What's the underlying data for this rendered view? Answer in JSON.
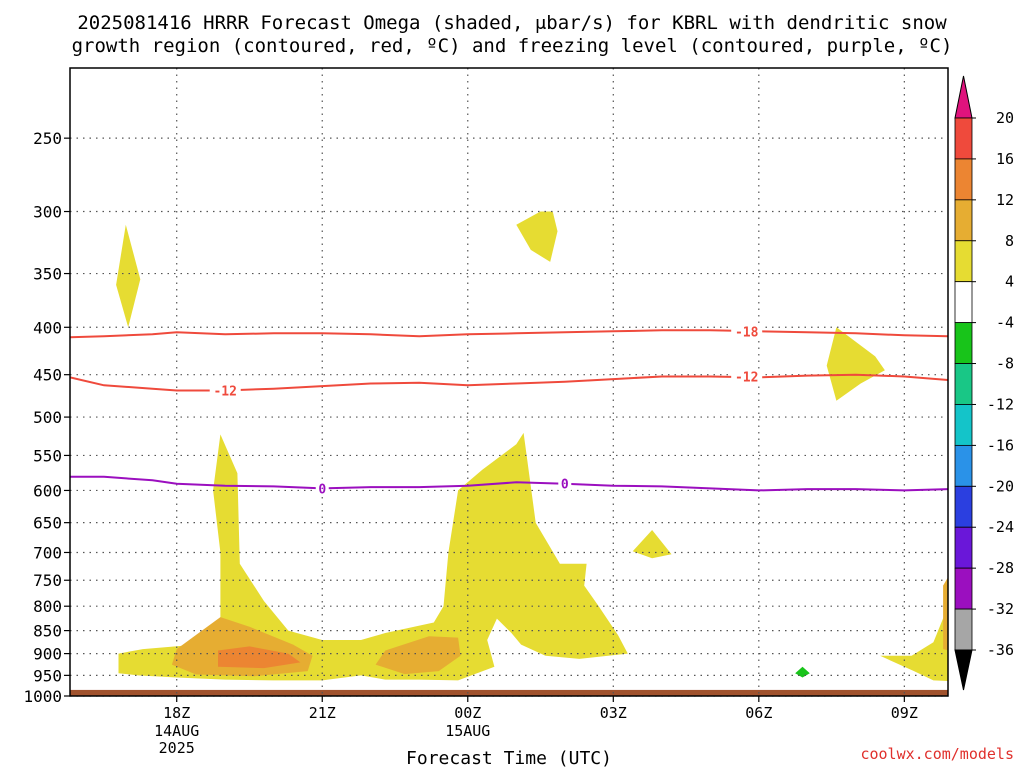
{
  "title": {
    "line1": "2025081416 HRRR Forecast Omega (shaded, μbar/s) for KBRL with dendritic snow",
    "line2": "growth region (contoured, red, ºC) and freezing level (contoured, purple, ºC)"
  },
  "credit": "coolwx.com/models",
  "chart_data": {
    "type": "heatmap",
    "xlabel": "Forecast Time (UTC)",
    "x_ticks": [
      {
        "label": "18Z",
        "sub": [
          "14AUG",
          "2025"
        ],
        "hour": 2
      },
      {
        "label": "21Z",
        "sub": [],
        "hour": 5
      },
      {
        "label": "00Z",
        "sub": [
          "15AUG"
        ],
        "hour": 8
      },
      {
        "label": "03Z",
        "sub": [],
        "hour": 11
      },
      {
        "label": "06Z",
        "sub": [],
        "hour": 14
      },
      {
        "label": "09Z",
        "sub": [],
        "hour": 17
      }
    ],
    "xlim_hours": [
      -0.2,
      17.9
    ],
    "y_ticks": [
      250,
      300,
      350,
      400,
      450,
      500,
      550,
      600,
      650,
      700,
      750,
      800,
      850,
      900,
      950,
      1000
    ],
    "ylim_hpa": [
      210,
      1000
    ],
    "y_scale": "log-pressure",
    "grid": true,
    "ground": {
      "color": "#a0522d",
      "from_hpa": 985
    },
    "colorbar": {
      "levels": [
        -36,
        -32,
        -28,
        -24,
        -20,
        -16,
        -12,
        -8,
        -4,
        4,
        8,
        12,
        16,
        20
      ],
      "colors": [
        "#000000",
        "#a6a6a6",
        "#9b0fbf",
        "#6a17d9",
        "#2b3fe0",
        "#2a92e8",
        "#14c4c9",
        "#19c786",
        "#18c41a",
        "#ffffff",
        "#e6dc32",
        "#e6ad32",
        "#ec8532",
        "#ef4a3c",
        "#e0137d"
      ]
    },
    "omega_regions": [
      {
        "level": 4,
        "color": "#e6dc32",
        "points": [
          [
            0.95,
            310
          ],
          [
            1.25,
            355
          ],
          [
            1.0,
            400
          ],
          [
            0.75,
            360
          ]
        ]
      },
      {
        "level": 4,
        "color": "#e6dc32",
        "points": [
          [
            9.0,
            310
          ],
          [
            9.5,
            300
          ],
          [
            9.75,
            300
          ],
          [
            9.85,
            315
          ],
          [
            9.7,
            340
          ],
          [
            9.3,
            330
          ]
        ]
      },
      {
        "level": 4,
        "color": "#e6dc32",
        "points": [
          [
            15.6,
            400
          ],
          [
            16.4,
            430
          ],
          [
            16.6,
            445
          ],
          [
            16.1,
            460
          ],
          [
            15.6,
            480
          ],
          [
            15.4,
            440
          ]
        ]
      },
      {
        "level": 4,
        "color": "#e6dc32",
        "points": [
          [
            11.4,
            698
          ],
          [
            11.8,
            662
          ],
          [
            12.2,
            703
          ],
          [
            11.8,
            710
          ]
        ]
      },
      {
        "level": 4,
        "color": "#e6dc32",
        "points": [
          [
            0.8,
            900
          ],
          [
            1.3,
            890
          ],
          [
            2.4,
            880
          ],
          [
            2.9,
            860
          ],
          [
            2.9,
            700
          ],
          [
            2.75,
            600
          ],
          [
            2.9,
            522
          ],
          [
            3.25,
            575
          ],
          [
            3.3,
            720
          ],
          [
            3.8,
            790
          ],
          [
            4.3,
            850
          ],
          [
            5.0,
            870
          ],
          [
            5.8,
            870
          ],
          [
            6.3,
            855
          ],
          [
            7.3,
            833
          ],
          [
            7.5,
            800
          ],
          [
            7.6,
            700
          ],
          [
            7.8,
            600
          ],
          [
            8.3,
            570
          ],
          [
            9.0,
            535
          ],
          [
            9.15,
            520
          ],
          [
            9.4,
            650
          ],
          [
            9.9,
            720
          ],
          [
            10.45,
            720
          ],
          [
            10.4,
            760
          ],
          [
            10.7,
            800
          ],
          [
            11.1,
            860
          ],
          [
            11.3,
            900
          ],
          [
            10.3,
            912
          ],
          [
            9.6,
            905
          ],
          [
            9.1,
            880
          ],
          [
            8.9,
            855
          ],
          [
            8.6,
            825
          ],
          [
            8.4,
            870
          ],
          [
            8.55,
            930
          ],
          [
            7.8,
            962
          ],
          [
            7.0,
            960
          ],
          [
            6.3,
            960
          ],
          [
            5.8,
            950
          ],
          [
            5.0,
            962
          ],
          [
            4.0,
            962
          ],
          [
            3.0,
            960
          ],
          [
            2.0,
            955
          ],
          [
            1.2,
            950
          ],
          [
            0.8,
            945
          ]
        ]
      },
      {
        "level": 4,
        "color": "#e6dc32",
        "points": [
          [
            17.15,
            905
          ],
          [
            17.6,
            875
          ],
          [
            17.9,
            800
          ],
          [
            18.2,
            700
          ],
          [
            18.2,
            965
          ],
          [
            17.6,
            962
          ],
          [
            17.2,
            940
          ],
          [
            16.8,
            920
          ],
          [
            16.5,
            905
          ]
        ]
      },
      {
        "level": 8,
        "color": "#e6ad32",
        "points": [
          [
            2.0,
            890
          ],
          [
            2.9,
            822
          ],
          [
            3.5,
            842
          ],
          [
            4.4,
            880
          ],
          [
            4.8,
            905
          ],
          [
            4.7,
            940
          ],
          [
            3.6,
            952
          ],
          [
            2.4,
            948
          ],
          [
            1.9,
            925
          ]
        ]
      },
      {
        "level": 8,
        "color": "#e6ad32",
        "points": [
          [
            6.3,
            893
          ],
          [
            7.2,
            862
          ],
          [
            7.8,
            865
          ],
          [
            7.85,
            905
          ],
          [
            7.4,
            940
          ],
          [
            6.7,
            947
          ],
          [
            6.1,
            925
          ]
        ]
      },
      {
        "level": 8,
        "color": "#e6ad32",
        "points": [
          [
            17.8,
            760
          ],
          [
            18.2,
            700
          ],
          [
            18.2,
            900
          ],
          [
            17.8,
            890
          ]
        ]
      },
      {
        "level": 12,
        "color": "#ec8532",
        "points": [
          [
            2.85,
            893
          ],
          [
            3.5,
            884
          ],
          [
            4.3,
            900
          ],
          [
            4.55,
            920
          ],
          [
            3.8,
            933
          ],
          [
            2.85,
            930
          ]
        ]
      },
      {
        "level": -4,
        "color": "#18c41a",
        "points": [
          [
            14.75,
            945
          ],
          [
            14.9,
            930
          ],
          [
            15.05,
            945
          ],
          [
            14.9,
            955
          ]
        ]
      }
    ],
    "series": [
      {
        "name": "",
        "color": "#ef4a3c",
        "x": [
          -0.2,
          0.5,
          1.5,
          2.0,
          3.0,
          4.0,
          5.0,
          6.0,
          7.0,
          8.0,
          9.0,
          10.0,
          11.0,
          12.0,
          13.0,
          14.0,
          15.0,
          16.0,
          17.0,
          17.9
        ],
        "y": [
          410,
          409,
          407,
          405,
          407,
          406,
          406,
          407,
          409,
          407,
          406,
          405,
          404,
          403,
          403,
          404,
          405,
          406,
          408,
          409
        ]
      },
      {
        "name": "",
        "color": "#ef4a3c",
        "x": [
          -0.2,
          0.5,
          1.5,
          2.0,
          3.0,
          4.0,
          5.0,
          6.0,
          7.0,
          8.0,
          9.0,
          10.0,
          11.0,
          12.0,
          13.0,
          14.0,
          15.0,
          16.0,
          17.0,
          17.9
        ],
        "y": [
          453,
          462,
          466,
          468,
          468,
          466,
          463,
          460,
          459,
          462,
          460,
          458,
          455,
          452,
          452,
          453,
          451,
          450,
          452,
          456
        ]
      },
      {
        "name": "",
        "color": "#9b0fbf",
        "x": [
          -0.2,
          0.5,
          1.5,
          2.0,
          3.0,
          4.0,
          5.0,
          6.0,
          7.0,
          8.0,
          9.0,
          10.0,
          11.0,
          12.0,
          13.0,
          14.0,
          15.0,
          16.0,
          17.0,
          17.9
        ],
        "y": [
          580,
          580,
          585,
          590,
          593,
          594,
          597,
          595,
          595,
          593,
          588,
          590,
          593,
          594,
          597,
          600,
          598,
          598,
          600,
          598
        ]
      }
    ],
    "contour_labels": [
      {
        "text": "-18",
        "x": 13.75,
        "y": 404,
        "color": "#ef4a3c"
      },
      {
        "text": "-12",
        "x": 3.0,
        "y": 468,
        "color": "#ef4a3c"
      },
      {
        "text": "-12",
        "x": 13.75,
        "y": 452,
        "color": "#ef4a3c"
      },
      {
        "text": "0",
        "x": 5.0,
        "y": 597,
        "color": "#9b0fbf"
      },
      {
        "text": "0",
        "x": 10.0,
        "y": 590,
        "color": "#9b0fbf"
      }
    ]
  }
}
